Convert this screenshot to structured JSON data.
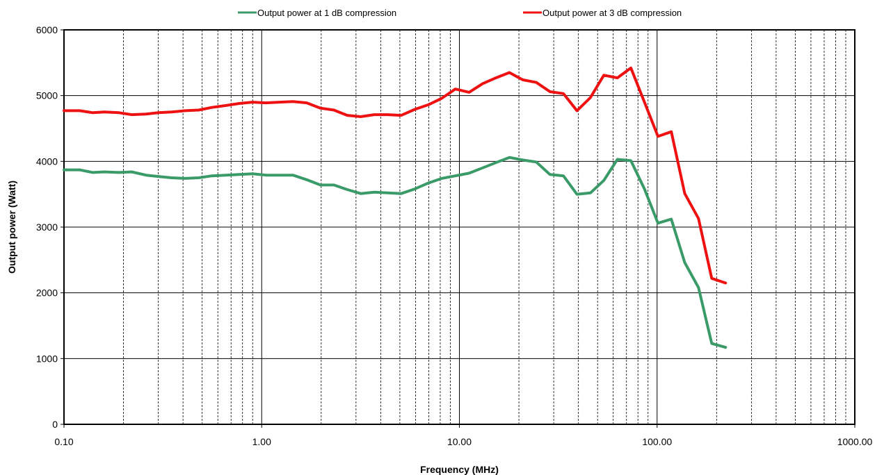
{
  "chart_data": {
    "type": "line",
    "title": "",
    "xlabel": "Frequency  (MHz)",
    "ylabel": "Output power (Watt)",
    "x_scale": "log",
    "xlim": [
      0.1,
      1000
    ],
    "ylim": [
      0,
      6000
    ],
    "x_ticks": [
      "0.10",
      "1.00",
      "10.00",
      "100.00",
      "1000.00"
    ],
    "y_ticks": [
      "0",
      "1000",
      "2000",
      "3000",
      "4000",
      "5000",
      "6000"
    ],
    "grid": "major solid, minor dashed vertical",
    "legend_position": "top",
    "series": [
      {
        "name": "Output power at 1 dB compression",
        "color": "#3a9a68",
        "x": [
          0.1,
          0.12,
          0.14,
          0.16,
          0.19,
          0.22,
          0.26,
          0.3,
          0.35,
          0.41,
          0.48,
          0.56,
          0.66,
          0.77,
          0.9,
          1.05,
          1.23,
          1.44,
          1.69,
          1.98,
          2.32,
          2.71,
          3.17,
          3.71,
          4.34,
          5.08,
          5.95,
          6.96,
          8.15,
          9.54,
          11.2,
          13.1,
          15.3,
          17.9,
          20.9,
          24.5,
          28.7,
          33.6,
          39.3,
          46.0,
          53.8,
          63.0,
          73.7,
          86.3,
          101,
          118,
          138,
          162,
          189,
          222
        ],
        "y": [
          3870,
          3870,
          3830,
          3840,
          3830,
          3840,
          3790,
          3770,
          3750,
          3740,
          3750,
          3780,
          3790,
          3800,
          3810,
          3790,
          3790,
          3790,
          3720,
          3640,
          3640,
          3570,
          3510,
          3530,
          3520,
          3510,
          3580,
          3670,
          3740,
          3780,
          3820,
          3900,
          3980,
          4060,
          4020,
          3990,
          3800,
          3780,
          3500,
          3520,
          3710,
          4030,
          4010,
          3580,
          3060,
          3120,
          2460,
          2080,
          1230,
          1170
        ]
      },
      {
        "name": "Output power at 3 dB compression",
        "color": "#ee1111",
        "x": [
          0.1,
          0.12,
          0.14,
          0.16,
          0.19,
          0.22,
          0.26,
          0.3,
          0.35,
          0.41,
          0.48,
          0.56,
          0.66,
          0.77,
          0.9,
          1.05,
          1.23,
          1.44,
          1.69,
          1.98,
          2.32,
          2.71,
          3.17,
          3.71,
          4.34,
          5.08,
          5.95,
          6.96,
          8.15,
          9.54,
          11.2,
          13.1,
          15.3,
          17.9,
          20.9,
          24.5,
          28.7,
          33.6,
          39.3,
          46.0,
          53.8,
          63.0,
          73.7,
          86.3,
          101,
          118,
          138,
          162,
          189,
          222
        ],
        "y": [
          4770,
          4770,
          4740,
          4750,
          4740,
          4710,
          4720,
          4740,
          4750,
          4770,
          4780,
          4820,
          4850,
          4880,
          4900,
          4890,
          4900,
          4910,
          4890,
          4810,
          4780,
          4700,
          4680,
          4710,
          4710,
          4700,
          4790,
          4860,
          4960,
          5100,
          5050,
          5180,
          5270,
          5350,
          5240,
          5200,
          5060,
          5030,
          4770,
          4970,
          5310,
          5270,
          5420,
          4900,
          4380,
          4450,
          3510,
          3130,
          2220,
          2150
        ]
      }
    ]
  }
}
